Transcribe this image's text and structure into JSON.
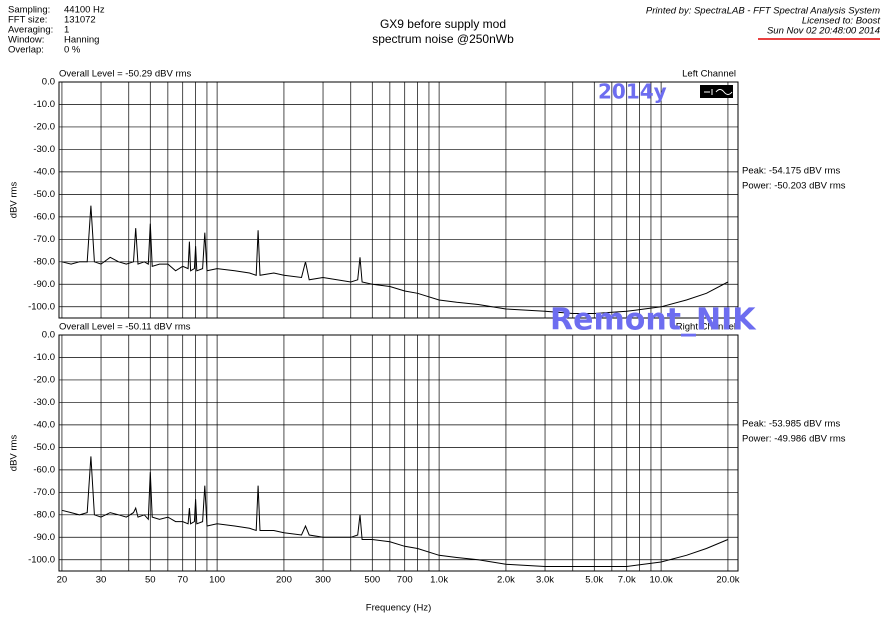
{
  "header": {
    "info": [
      [
        "Sampling:",
        "44100 Hz"
      ],
      [
        "FFT size:",
        "131072"
      ],
      [
        "Averaging:",
        "1"
      ],
      [
        "Window:",
        "Hanning"
      ],
      [
        "Overlap:",
        "0 %"
      ]
    ],
    "title": [
      "GX9 before supply mod",
      "spectrum noise @250nWb"
    ],
    "printed_by": "Printed by: SpectraLAB - FFT Spectral Analysis System",
    "licensed_to": "Licensed to: Boost",
    "date": "Sun Nov 02 20:48:00 2014"
  },
  "watermarks": [
    "2014y",
    "Remont_NIK"
  ],
  "chart_data": [
    {
      "type": "line",
      "log_x": true,
      "grid": true,
      "ylabel": "dBV rms",
      "overall": "Overall Level = -50.29 dBV rms",
      "channel": "Left Channel",
      "peak": "Peak: -54.175 dBV rms",
      "power": "Power: -50.203 dBV rms",
      "xlim": [
        19.4,
        22200
      ],
      "ylim": [
        -105,
        0
      ],
      "yticks": [
        {
          "value": 0,
          "label": "0.0"
        },
        {
          "value": -10,
          "label": "-10.0"
        },
        {
          "value": -20,
          "label": "-20.0"
        },
        {
          "value": -30,
          "label": "-30.0"
        },
        {
          "value": -40,
          "label": "-40.0"
        },
        {
          "value": -50,
          "label": "-50.0"
        },
        {
          "value": -60,
          "label": "-60.0"
        },
        {
          "value": -70,
          "label": "-70.0"
        },
        {
          "value": -80,
          "label": "-80.0"
        },
        {
          "value": -90,
          "label": "-90.0"
        },
        {
          "value": -100,
          "label": "-100.0"
        }
      ],
      "xgrid": [
        20,
        30,
        40,
        50,
        60,
        70,
        80,
        90,
        100,
        200,
        300,
        400,
        500,
        600,
        700,
        800,
        900,
        1000,
        2000,
        3000,
        4000,
        5000,
        6000,
        7000,
        8000,
        9000,
        10000,
        20000
      ],
      "series": [
        {
          "color": "#000000",
          "x": [
            20,
            22,
            24,
            26,
            27,
            28,
            30,
            33,
            36,
            39,
            42,
            43,
            44,
            47,
            49,
            50,
            51,
            55,
            60,
            65,
            70,
            74,
            75,
            76,
            79,
            80,
            81,
            86,
            88,
            90,
            100,
            120,
            140,
            150,
            153,
            156,
            180,
            200,
            240,
            250,
            260,
            300,
            400,
            430,
            440,
            450,
            500,
            600,
            700,
            800,
            1000,
            1200,
            1500,
            2000,
            3000,
            4000,
            5000,
            7000,
            10000,
            13000,
            16000,
            20000
          ],
          "values": [
            -80,
            -81,
            -80,
            -80,
            -55,
            -80,
            -81,
            -78,
            -80,
            -81,
            -80,
            -65,
            -81,
            -80,
            -81,
            -63,
            -82,
            -81,
            -81,
            -84,
            -82,
            -83,
            -71,
            -84,
            -83,
            -73,
            -84,
            -83,
            -67,
            -84,
            -83,
            -84,
            -85,
            -86,
            -66,
            -86,
            -85,
            -86,
            -87,
            -80,
            -88,
            -87,
            -89,
            -88,
            -78,
            -89,
            -90,
            -91,
            -93,
            -94,
            -97,
            -98,
            -99,
            -101,
            -102,
            -103,
            -103,
            -102,
            -100,
            -97,
            -94,
            -89
          ]
        }
      ]
    },
    {
      "type": "line",
      "log_x": true,
      "grid": true,
      "ylabel": "dBV rms",
      "xlabel": "Frequency (Hz)",
      "overall": "Overall Level = -50.11 dBV rms",
      "channel": "Right Channel",
      "peak": "Peak: -53.985 dBV rms",
      "power": "Power: -49.986 dBV rms",
      "xlim": [
        19.4,
        22200
      ],
      "ylim": [
        -105,
        0
      ],
      "yticks": [
        {
          "value": 0,
          "label": "0.0"
        },
        {
          "value": -10,
          "label": "-10.0"
        },
        {
          "value": -20,
          "label": "-20.0"
        },
        {
          "value": -30,
          "label": "-30.0"
        },
        {
          "value": -40,
          "label": "-40.0"
        },
        {
          "value": -50,
          "label": "-50.0"
        },
        {
          "value": -60,
          "label": "-60.0"
        },
        {
          "value": -70,
          "label": "-70.0"
        },
        {
          "value": -80,
          "label": "-80.0"
        },
        {
          "value": -90,
          "label": "-90.0"
        },
        {
          "value": -100,
          "label": "-100.0"
        }
      ],
      "xgrid": [
        20,
        30,
        40,
        50,
        60,
        70,
        80,
        90,
        100,
        200,
        300,
        400,
        500,
        600,
        700,
        800,
        900,
        1000,
        2000,
        3000,
        4000,
        5000,
        6000,
        7000,
        8000,
        9000,
        10000,
        20000
      ],
      "xticks": [
        20,
        30,
        50,
        70,
        100,
        200,
        300,
        500,
        700,
        {
          "value": 1000,
          "label": "1.0k"
        },
        {
          "value": 2000,
          "label": "2.0k"
        },
        {
          "value": 3000,
          "label": "3.0k"
        },
        {
          "value": 5000,
          "label": "5.0k"
        },
        {
          "value": 7000,
          "label": "7.0k"
        },
        {
          "value": 10000,
          "label": "10.0k"
        },
        {
          "value": 20000,
          "label": "20.0k"
        }
      ],
      "series": [
        {
          "color": "#000000",
          "x": [
            20,
            22,
            24,
            26,
            27,
            28,
            30,
            33,
            36,
            39,
            42,
            43,
            44,
            47,
            49,
            50,
            51,
            55,
            60,
            65,
            70,
            74,
            75,
            76,
            79,
            80,
            81,
            86,
            88,
            90,
            100,
            120,
            140,
            150,
            153,
            156,
            180,
            200,
            240,
            250,
            260,
            300,
            400,
            430,
            440,
            450,
            500,
            600,
            700,
            800,
            1000,
            1200,
            1500,
            2000,
            3000,
            4000,
            5000,
            7000,
            10000,
            13000,
            16000,
            20000
          ],
          "values": [
            -78,
            -79,
            -80,
            -79,
            -54,
            -80,
            -81,
            -79,
            -80,
            -81,
            -79,
            -77,
            -81,
            -80,
            -82,
            -61,
            -81,
            -82,
            -81,
            -83,
            -83,
            -84,
            -77,
            -84,
            -83,
            -73,
            -84,
            -83,
            -67,
            -85,
            -84,
            -85,
            -86,
            -87,
            -67,
            -87,
            -87,
            -88,
            -89,
            -85,
            -89,
            -90,
            -90,
            -89,
            -80,
            -91,
            -91,
            -92,
            -94,
            -95,
            -98,
            -99,
            -100,
            -102,
            -103,
            -103,
            -103,
            -103,
            -101,
            -98,
            -95,
            -91
          ]
        }
      ]
    }
  ]
}
